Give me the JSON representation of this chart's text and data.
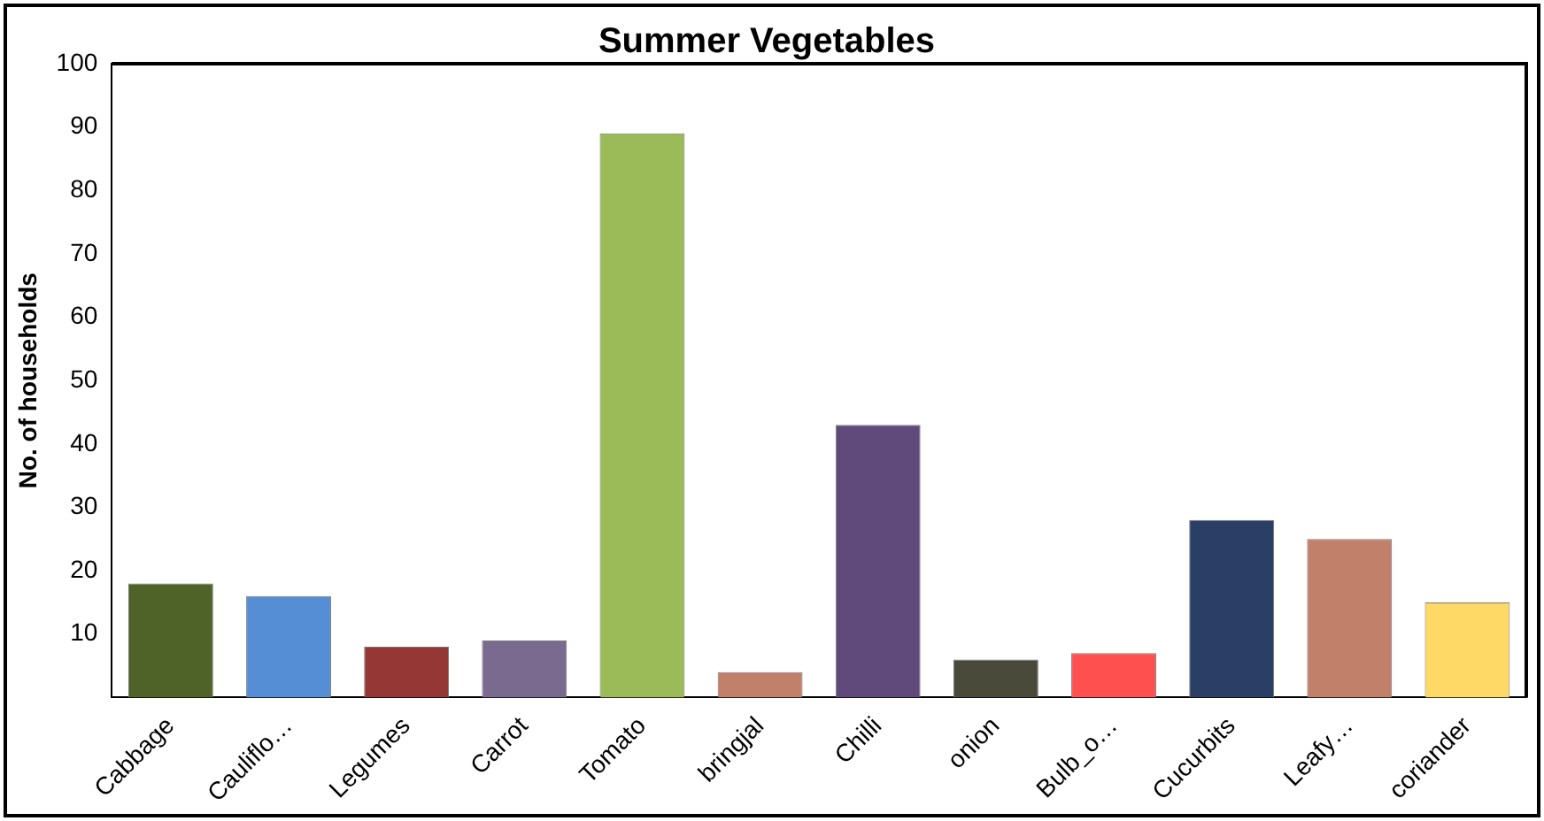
{
  "chart_data": {
    "type": "bar",
    "title": "Summer Vegetables",
    "ylabel": "No. of households",
    "categories": [
      "Cabbage",
      "Cauliflo…",
      "Legumes",
      "Carrot",
      "Tomato",
      "bringjal",
      "Chilli",
      "onion",
      "Bulb_o…",
      "Cucurbits",
      "Leafy…",
      "coriander"
    ],
    "values": [
      18,
      16,
      8,
      9,
      89,
      4,
      43,
      6,
      7,
      28,
      25,
      15
    ],
    "colors": [
      "#4f6228",
      "#558ed5",
      "#953735",
      "#7b6a8f",
      "#9bbb59",
      "#c0806a",
      "#604a7b",
      "#4a4a3a",
      "#ff5050",
      "#2b3f66",
      "#c0806a",
      "#ffd966"
    ],
    "ylim": [
      0,
      100
    ],
    "yticks": [
      10,
      20,
      30,
      40,
      50,
      60,
      70,
      80,
      90,
      100
    ],
    "grid": false,
    "legend": false
  }
}
